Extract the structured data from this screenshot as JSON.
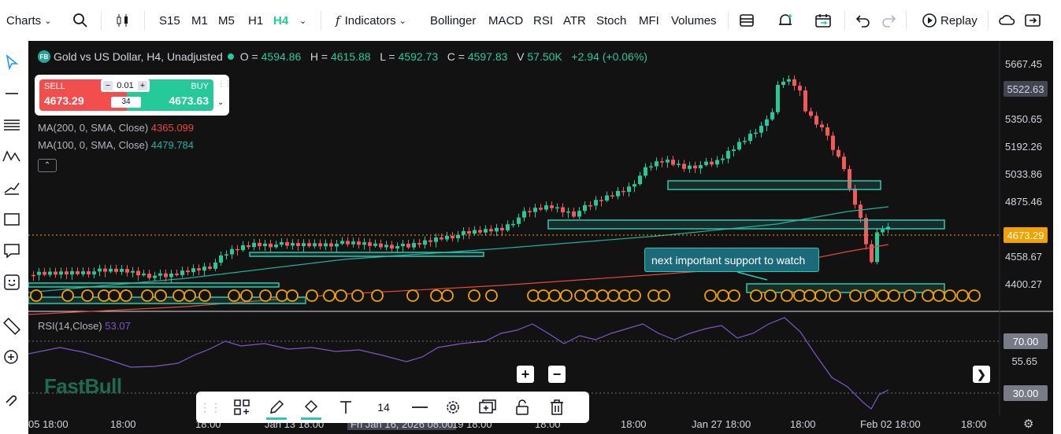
{
  "topbar": {
    "charts_label": "Charts",
    "timeframes": [
      "S15",
      "M1",
      "M5",
      "H1",
      "H4"
    ],
    "active_timeframe": "H4",
    "indicators_label": "Indicators",
    "indicator_shortcuts": [
      "Bollinger",
      "MACD",
      "RSI",
      "ATR",
      "Stoch",
      "MFI",
      "Volumes"
    ],
    "replay_label": "Replay"
  },
  "legend": {
    "badge": "FB",
    "symbol": "Gold vs US Dollar, H4, Unadjusted",
    "o_label": "O =",
    "o_value": "4594.86",
    "h_label": "H =",
    "h_value": "4615.88",
    "l_label": "L =",
    "l_value": "4592.73",
    "c_label": "C =",
    "c_value": "4597.83",
    "v_label": "V",
    "v_value": "57.50K",
    "change": "+2.94 (+0.06%)"
  },
  "trade_widget": {
    "sell_label": "SELL",
    "sell_price": "4673.29",
    "buy_label": "BUY",
    "buy_price": "4673.63",
    "quantity": "0.01",
    "spread": "34",
    "minus": "−",
    "plus": "+"
  },
  "indicators": {
    "ma200_label": "MA(200, 0, SMA, Close)",
    "ma200_value": "4365.099",
    "ma100_label": "MA(100, 0, SMA, Close)",
    "ma100_value": "4479.784",
    "rsi_label": "RSI(14,Close)",
    "rsi_value": "53.07"
  },
  "price_axis": [
    "5667.45",
    "5350.65",
    "5192.26",
    "5033.86",
    "4875.46",
    "4558.67",
    "4400.27"
  ],
  "price_tags": {
    "crosshair": "5522.63",
    "last": "4673.29"
  },
  "rsi_axis": {
    "upper": "70.00",
    "mid": "55.65",
    "lower": "30.00"
  },
  "time_axis": [
    "05 18:00",
    "18:00",
    "18:00",
    "Jan 13 18:00",
    "Fri Jan 16, 2026 08:00",
    "19 18:00",
    "18:00",
    "18:00",
    "Jan 27 18:00",
    "18:00",
    "Feb 02 18:00",
    "18:00"
  ],
  "annotation": "next important support to watch",
  "watermark": "FastBull",
  "bottom_toolbar": {
    "font_size": "14"
  },
  "colors": {
    "bull": "#26c99a",
    "bear": "#f25a5a",
    "ma200": "#e8483b",
    "ma100": "#1fb1a0",
    "rsi": "#7e57c2",
    "zone": "#2ec7b0",
    "event": "#f2a100"
  }
}
